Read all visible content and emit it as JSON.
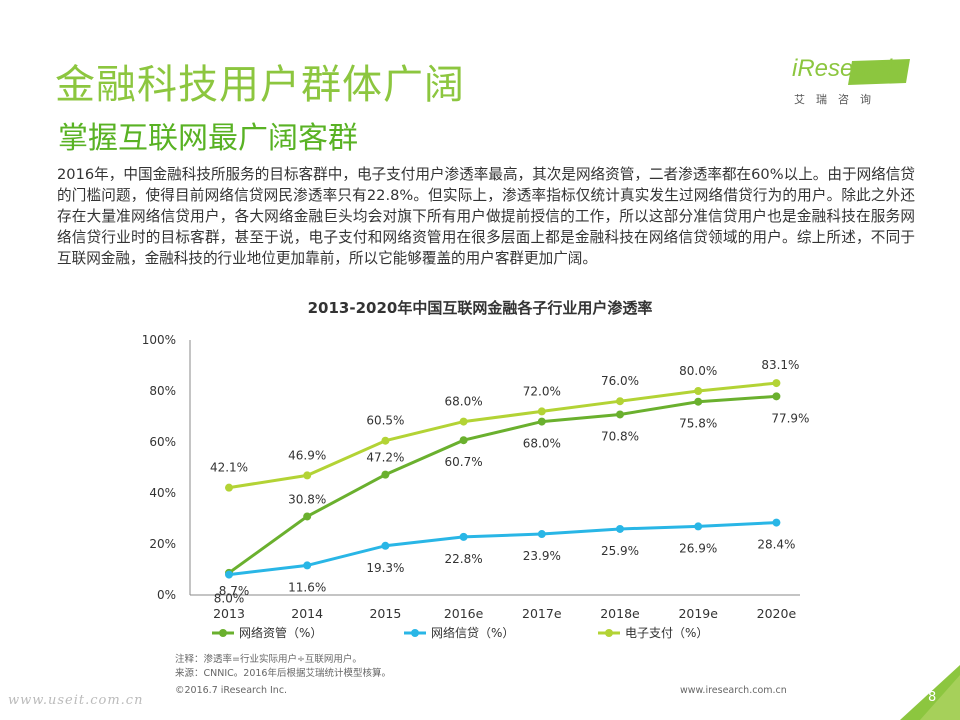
{
  "header": {
    "title": "金融科技用户群体广阔",
    "subtitle": "掌握互联网最广阔客群",
    "brand": "iResearch",
    "brand_sub": "艾瑞咨询"
  },
  "body_text": "2016年，中国金融科技所服务的目标客群中，电子支付用户渗透率最高，其次是网络资管，二者渗透率都在60%以上。由于网络信贷的门槛问题，使得目前网络信贷网民渗透率只有22.8%。但实际上，渗透率指标仅统计真实发生过网络借贷行为的用户。除此之外还存在大量准网络信贷用户，各大网络金融巨头均会对旗下所有用户做提前授信的工作，所以这部分准信贷用户也是金融科技在服务网络信贷行业时的目标客群，甚至于说，电子支付和网络资管用在很多层面上都是金融科技在网络信贷领域的用户。综上所述，不同于互联网金融，金融科技的行业地位更加靠前，所以它能够覆盖的用户客群更加广阔。",
  "chart_data": {
    "type": "line",
    "title": "2013-2020年中国互联网金融各子行业用户渗透率",
    "categories": [
      "2013",
      "2014",
      "2015",
      "2016e",
      "2017e",
      "2018e",
      "2019e",
      "2020e"
    ],
    "ylim": [
      0,
      100
    ],
    "yticks": [
      "0%",
      "20%",
      "40%",
      "60%",
      "80%",
      "100%"
    ],
    "grid": false,
    "legend_position": "bottom",
    "series": [
      {
        "name": "网络资管（%）",
        "color": "#6ab02e",
        "values": [
          8.7,
          30.8,
          47.2,
          60.7,
          68.0,
          70.8,
          75.8,
          77.9
        ],
        "labels": [
          "8.7%",
          "30.8%",
          "47.2%",
          "60.7%",
          "68.0%",
          "70.8%",
          "75.8%",
          "77.9%"
        ]
      },
      {
        "name": "网络信贷（%）",
        "color": "#29b6e6",
        "values": [
          8.0,
          11.6,
          19.3,
          22.8,
          23.9,
          25.9,
          26.9,
          28.4
        ],
        "labels": [
          "8.0%",
          "11.6%",
          "19.3%",
          "22.8%",
          "23.9%",
          "25.9%",
          "26.9%",
          "28.4%"
        ]
      },
      {
        "name": "电子支付（%）",
        "color": "#b3d335",
        "values": [
          42.1,
          46.9,
          60.5,
          68.0,
          72.0,
          76.0,
          80.0,
          83.1
        ],
        "labels": [
          "42.1%",
          "46.9%",
          "60.5%",
          "68.0%",
          "72.0%",
          "76.0%",
          "80.0%",
          "83.1%"
        ]
      }
    ]
  },
  "notes": {
    "line1": "注释：渗透率=行业实际用户÷互联网用户。",
    "line2": "来源：CNNIC。2016年后根据艾瑞统计模型核算。"
  },
  "footer": {
    "copyright": "©2016.7 iResearch Inc.",
    "url": "www.iresearch.com.cn",
    "watermark": "www.useit.com.cn",
    "page": "8"
  },
  "colors": {
    "title": "#8cc63f",
    "subtitle": "#59b224",
    "corner": "#8cc63f"
  }
}
